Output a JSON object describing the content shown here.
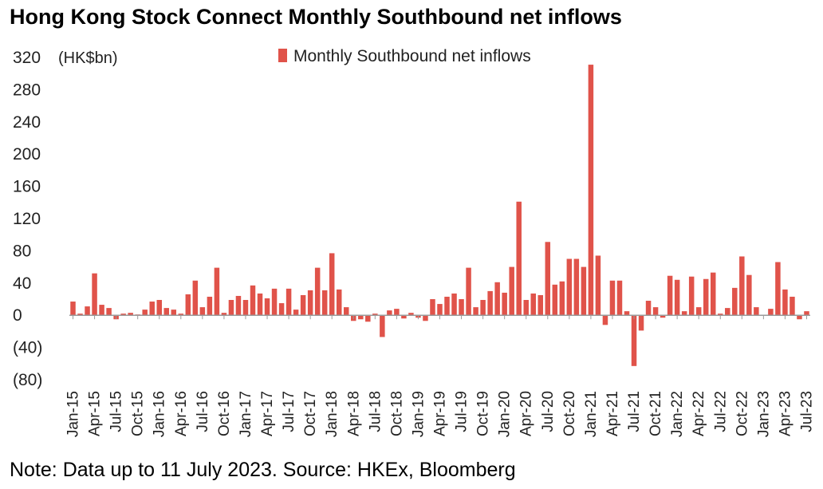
{
  "chart_data": {
    "type": "bar",
    "title": "Hong Kong Stock Connect Monthly Southbound net inflows",
    "unit_label": "(HK$bn)",
    "legend": "Monthly Southbound net inflows",
    "legend_position": "top-center",
    "note": "Note: Data up to 11 July 2023. Source: HKEx, Bloomberg",
    "color": "#e0534a",
    "ylim": [
      -80,
      320
    ],
    "yticks": [
      320,
      280,
      240,
      200,
      160,
      120,
      80,
      40,
      0,
      -40,
      -80
    ],
    "ytick_labels": [
      "320",
      "280",
      "240",
      "200",
      "160",
      "120",
      "80",
      "40",
      "0",
      "(40)",
      "(80)"
    ],
    "grid": false,
    "xtick_labels": [
      "Jan-15",
      "Apr-15",
      "Jul-15",
      "Oct-15",
      "Jan-16",
      "Apr-16",
      "Jul-16",
      "Oct-16",
      "Jan-17",
      "Apr-17",
      "Jul-17",
      "Oct-17",
      "Jan-18",
      "Apr-18",
      "Jul-18",
      "Oct-18",
      "Jan-19",
      "Apr-19",
      "Jul-19",
      "Oct-19",
      "Jan-20",
      "Apr-20",
      "Jul-20",
      "Oct-20",
      "Jan-21",
      "Apr-21",
      "Jul-21",
      "Oct-21",
      "Jan-22",
      "Apr-22",
      "Jul-22",
      "Oct-22",
      "Jan-23",
      "Apr-23",
      "Jul-23"
    ],
    "categories": [
      "Jan-15",
      "Feb-15",
      "Mar-15",
      "Apr-15",
      "May-15",
      "Jun-15",
      "Jul-15",
      "Aug-15",
      "Sep-15",
      "Oct-15",
      "Nov-15",
      "Dec-15",
      "Jan-16",
      "Feb-16",
      "Mar-16",
      "Apr-16",
      "May-16",
      "Jun-16",
      "Jul-16",
      "Aug-16",
      "Sep-16",
      "Oct-16",
      "Nov-16",
      "Dec-16",
      "Jan-17",
      "Feb-17",
      "Mar-17",
      "Apr-17",
      "May-17",
      "Jun-17",
      "Jul-17",
      "Aug-17",
      "Sep-17",
      "Oct-17",
      "Nov-17",
      "Dec-17",
      "Jan-18",
      "Feb-18",
      "Mar-18",
      "Apr-18",
      "May-18",
      "Jun-18",
      "Jul-18",
      "Aug-18",
      "Sep-18",
      "Oct-18",
      "Nov-18",
      "Dec-18",
      "Jan-19",
      "Feb-19",
      "Mar-19",
      "Apr-19",
      "May-19",
      "Jun-19",
      "Jul-19",
      "Aug-19",
      "Sep-19",
      "Oct-19",
      "Nov-19",
      "Dec-19",
      "Jan-20",
      "Feb-20",
      "Mar-20",
      "Apr-20",
      "May-20",
      "Jun-20",
      "Jul-20",
      "Aug-20",
      "Sep-20",
      "Oct-20",
      "Nov-20",
      "Dec-20",
      "Jan-21",
      "Feb-21",
      "Mar-21",
      "Apr-21",
      "May-21",
      "Jun-21",
      "Jul-21",
      "Aug-21",
      "Sep-21",
      "Oct-21",
      "Nov-21",
      "Dec-21",
      "Jan-22",
      "Feb-22",
      "Mar-22",
      "Apr-22",
      "May-22",
      "Jun-22",
      "Jul-22",
      "Aug-22",
      "Sep-22",
      "Oct-22",
      "Nov-22",
      "Dec-22",
      "Jan-23",
      "Feb-23",
      "Mar-23",
      "Apr-23",
      "May-23",
      "Jun-23",
      "Jul-23"
    ],
    "values": [
      17,
      2,
      11,
      52,
      13,
      9,
      -5,
      2,
      3,
      1,
      7,
      17,
      19,
      9,
      7,
      2,
      26,
      43,
      10,
      23,
      59,
      3,
      19,
      24,
      19,
      37,
      27,
      21,
      33,
      15,
      33,
      7,
      25,
      31,
      59,
      31,
      77,
      32,
      10,
      -7,
      -5,
      -8,
      2,
      -27,
      6,
      8,
      -4,
      3,
      -3,
      -7,
      20,
      14,
      23,
      27,
      20,
      59,
      10,
      19,
      30,
      41,
      28,
      60,
      141,
      19,
      27,
      25,
      91,
      38,
      42,
      70,
      70,
      60,
      311,
      74,
      -12,
      43,
      43,
      5,
      -63,
      -19,
      18,
      10,
      -3,
      49,
      44,
      5,
      48,
      10,
      45,
      53,
      2,
      9,
      34,
      73,
      50,
      10,
      0,
      8,
      66,
      32,
      23,
      -5,
      5
    ]
  }
}
